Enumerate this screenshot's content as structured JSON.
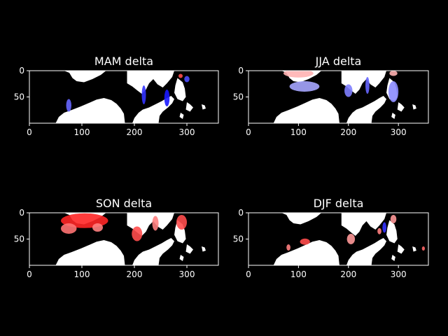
{
  "figure": {
    "background": "#000000"
  },
  "chart_data": [
    {
      "type": "heatmap",
      "title": "MAM delta",
      "xticks": [
        0,
        100,
        200,
        300
      ],
      "yticks": [
        0,
        50
      ],
      "xlim": [
        0,
        360
      ],
      "ylim": [
        100,
        0
      ],
      "colormap": "bwr",
      "land_color": "#ffffff",
      "missing_color": "#000000",
      "dominant_sign": "negative",
      "delta_patches": [
        {
          "lon": 262,
          "lat": 52,
          "rx": 5,
          "ry": 16,
          "value": -0.9
        },
        {
          "lon": 218,
          "lat": 46,
          "rx": 4,
          "ry": 18,
          "value": -0.8
        },
        {
          "lon": 75,
          "lat": 66,
          "rx": 5,
          "ry": 12,
          "value": -0.6
        },
        {
          "lon": 288,
          "lat": 10,
          "rx": 4,
          "ry": 4,
          "value": 0.7
        },
        {
          "lon": 300,
          "lat": 16,
          "rx": 5,
          "ry": 6,
          "value": -0.7
        }
      ]
    },
    {
      "type": "heatmap",
      "title": "JJA delta",
      "xticks": [
        0,
        100,
        200,
        300
      ],
      "yticks": [
        0,
        50
      ],
      "xlim": [
        0,
        360
      ],
      "ylim": [
        100,
        0
      ],
      "colormap": "bwr",
      "land_color": "#ffffff",
      "missing_color": "#000000",
      "dominant_sign": "mixed",
      "delta_patches": [
        {
          "lon": 100,
          "lat": 5,
          "rx": 30,
          "ry": 8,
          "value": 0.3
        },
        {
          "lon": 112,
          "lat": 30,
          "rx": 30,
          "ry": 10,
          "value": -0.35
        },
        {
          "lon": 200,
          "lat": 38,
          "rx": 8,
          "ry": 12,
          "value": -0.5
        },
        {
          "lon": 238,
          "lat": 28,
          "rx": 4,
          "ry": 16,
          "value": -0.6
        },
        {
          "lon": 290,
          "lat": 40,
          "rx": 10,
          "ry": 20,
          "value": -0.45
        },
        {
          "lon": 290,
          "lat": 5,
          "rx": 8,
          "ry": 5,
          "value": 0.3
        }
      ]
    },
    {
      "type": "heatmap",
      "title": "SON delta",
      "xticks": [
        0,
        100,
        200,
        300
      ],
      "yticks": [
        0,
        50
      ],
      "xlim": [
        0,
        360
      ],
      "ylim": [
        100,
        0
      ],
      "colormap": "bwr",
      "land_color": "#ffffff",
      "missing_color": "#000000",
      "dominant_sign": "positive",
      "delta_patches": [
        {
          "lon": 105,
          "lat": 15,
          "rx": 45,
          "ry": 14,
          "value": 0.85
        },
        {
          "lon": 75,
          "lat": 30,
          "rx": 15,
          "ry": 10,
          "value": 0.55
        },
        {
          "lon": 130,
          "lat": 28,
          "rx": 10,
          "ry": 8,
          "value": 0.5
        },
        {
          "lon": 205,
          "lat": 40,
          "rx": 10,
          "ry": 14,
          "value": 0.7
        },
        {
          "lon": 240,
          "lat": 20,
          "rx": 6,
          "ry": 14,
          "value": 0.5
        },
        {
          "lon": 290,
          "lat": 18,
          "rx": 10,
          "ry": 14,
          "value": 0.7
        }
      ]
    },
    {
      "type": "heatmap",
      "title": "DJF delta",
      "xticks": [
        0,
        100,
        200,
        300
      ],
      "yticks": [
        0,
        50
      ],
      "xlim": [
        0,
        360
      ],
      "ylim": [
        100,
        0
      ],
      "colormap": "bwr",
      "land_color": "#ffffff",
      "missing_color": "#000000",
      "dominant_sign": "mixed",
      "delta_patches": [
        {
          "lon": 113,
          "lat": 55,
          "rx": 10,
          "ry": 6,
          "value": 0.7
        },
        {
          "lon": 80,
          "lat": 66,
          "rx": 4,
          "ry": 6,
          "value": 0.5
        },
        {
          "lon": 205,
          "lat": 50,
          "rx": 8,
          "ry": 10,
          "value": 0.4
        },
        {
          "lon": 262,
          "lat": 35,
          "rx": 4,
          "ry": 6,
          "value": 0.5
        },
        {
          "lon": 272,
          "lat": 28,
          "rx": 4,
          "ry": 10,
          "value": -0.8
        },
        {
          "lon": 290,
          "lat": 12,
          "rx": 6,
          "ry": 8,
          "value": 0.4
        },
        {
          "lon": 350,
          "lat": 68,
          "rx": 3,
          "ry": 4,
          "value": 0.6
        }
      ]
    }
  ]
}
